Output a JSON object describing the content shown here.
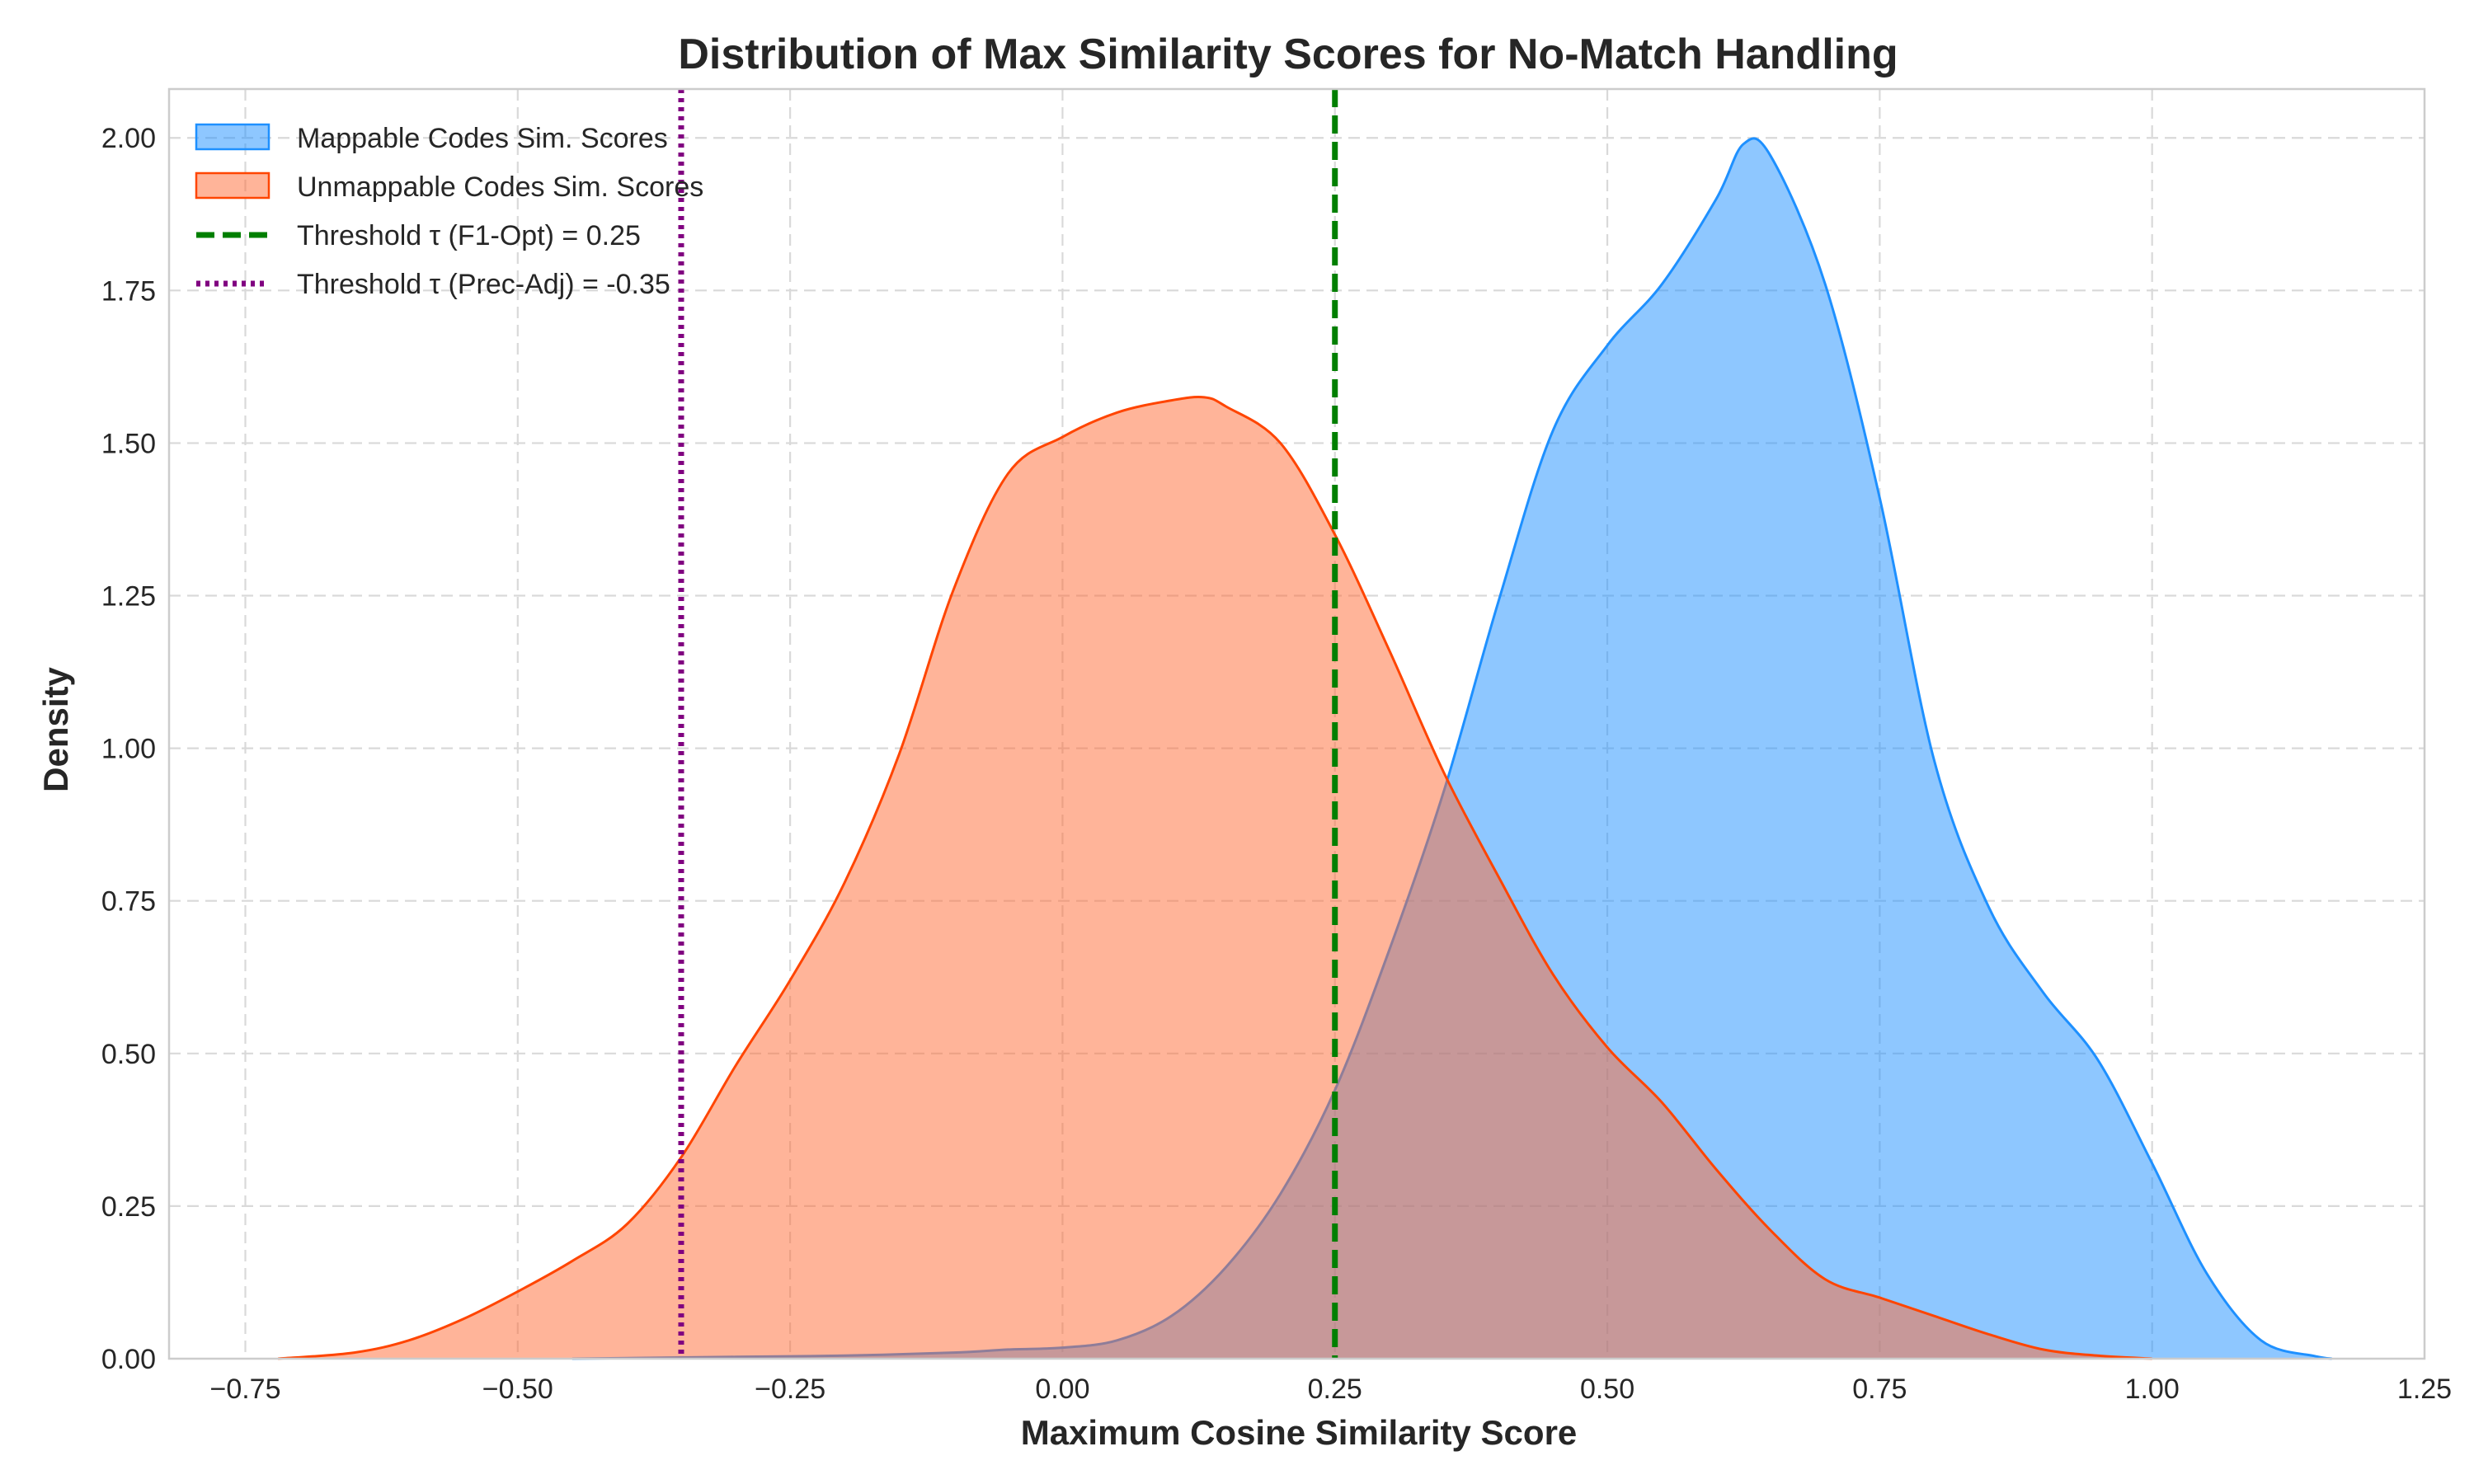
{
  "chart_data": {
    "type": "area",
    "title": "Distribution of Max Similarity Scores for No-Match Handling",
    "xlabel": "Maximum Cosine Similarity Score",
    "ylabel": "Density",
    "xlim": [
      -0.82,
      1.25
    ],
    "ylim": [
      0,
      2.08
    ],
    "x_ticks": [
      "−0.75",
      "−0.50",
      "−0.25",
      "0.00",
      "0.25",
      "0.50",
      "0.75",
      "1.00",
      "1.25"
    ],
    "x_tick_values": [
      -0.75,
      -0.5,
      -0.25,
      0.0,
      0.25,
      0.5,
      0.75,
      1.0,
      1.25
    ],
    "y_ticks": [
      "0.00",
      "0.25",
      "0.50",
      "0.75",
      "1.00",
      "1.25",
      "1.50",
      "1.75",
      "2.00"
    ],
    "y_tick_values": [
      0.0,
      0.25,
      0.5,
      0.75,
      1.0,
      1.25,
      1.5,
      1.75,
      2.0
    ],
    "grid": true,
    "legend_position": "top-left",
    "series": [
      {
        "name": "Mappable Codes Sim. Scores",
        "fill": "#1e90ff",
        "stroke": "#1e90ff",
        "x": [
          -0.45,
          -0.3,
          -0.2,
          -0.1,
          -0.05,
          0.0,
          0.05,
          0.1,
          0.15,
          0.2,
          0.25,
          0.3,
          0.35,
          0.4,
          0.45,
          0.5,
          0.55,
          0.6,
          0.625,
          0.65,
          0.7,
          0.75,
          0.8,
          0.85,
          0.9,
          0.95,
          1.0,
          1.05,
          1.1,
          1.15,
          1.165
        ],
        "y": [
          0.0,
          0.003,
          0.005,
          0.01,
          0.015,
          0.018,
          0.03,
          0.07,
          0.15,
          0.27,
          0.44,
          0.67,
          0.93,
          1.24,
          1.52,
          1.66,
          1.76,
          1.9,
          1.99,
          1.97,
          1.76,
          1.41,
          0.98,
          0.74,
          0.6,
          0.49,
          0.32,
          0.14,
          0.03,
          0.004,
          0.0
        ]
      },
      {
        "name": "Unmappable Codes Sim. Scores",
        "fill": "#ff6a33",
        "stroke": "#ff4500",
        "x": [
          -0.72,
          -0.65,
          -0.6,
          -0.55,
          -0.5,
          -0.45,
          -0.4,
          -0.35,
          -0.3,
          -0.25,
          -0.2,
          -0.15,
          -0.1,
          -0.05,
          0.0,
          0.05,
          0.1,
          0.13,
          0.15,
          0.2,
          0.25,
          0.3,
          0.35,
          0.4,
          0.45,
          0.5,
          0.55,
          0.6,
          0.65,
          0.7,
          0.75,
          0.8,
          0.85,
          0.9,
          0.95,
          1.0
        ],
        "y": [
          0.0,
          0.01,
          0.03,
          0.065,
          0.11,
          0.16,
          0.22,
          0.33,
          0.48,
          0.62,
          0.78,
          0.99,
          1.26,
          1.45,
          1.51,
          1.55,
          1.57,
          1.575,
          1.56,
          1.5,
          1.35,
          1.16,
          0.96,
          0.79,
          0.63,
          0.51,
          0.42,
          0.31,
          0.21,
          0.13,
          0.1,
          0.07,
          0.04,
          0.015,
          0.005,
          0.0
        ]
      }
    ],
    "thresholds": [
      {
        "name": "Threshold τ (F1-Opt) = 0.25",
        "value": 0.25,
        "color": "#007f00",
        "style": "dashed"
      },
      {
        "name": "Threshold τ (Prec-Adj) = -0.35",
        "value": -0.35,
        "color": "#800080",
        "style": "dotted"
      }
    ]
  }
}
